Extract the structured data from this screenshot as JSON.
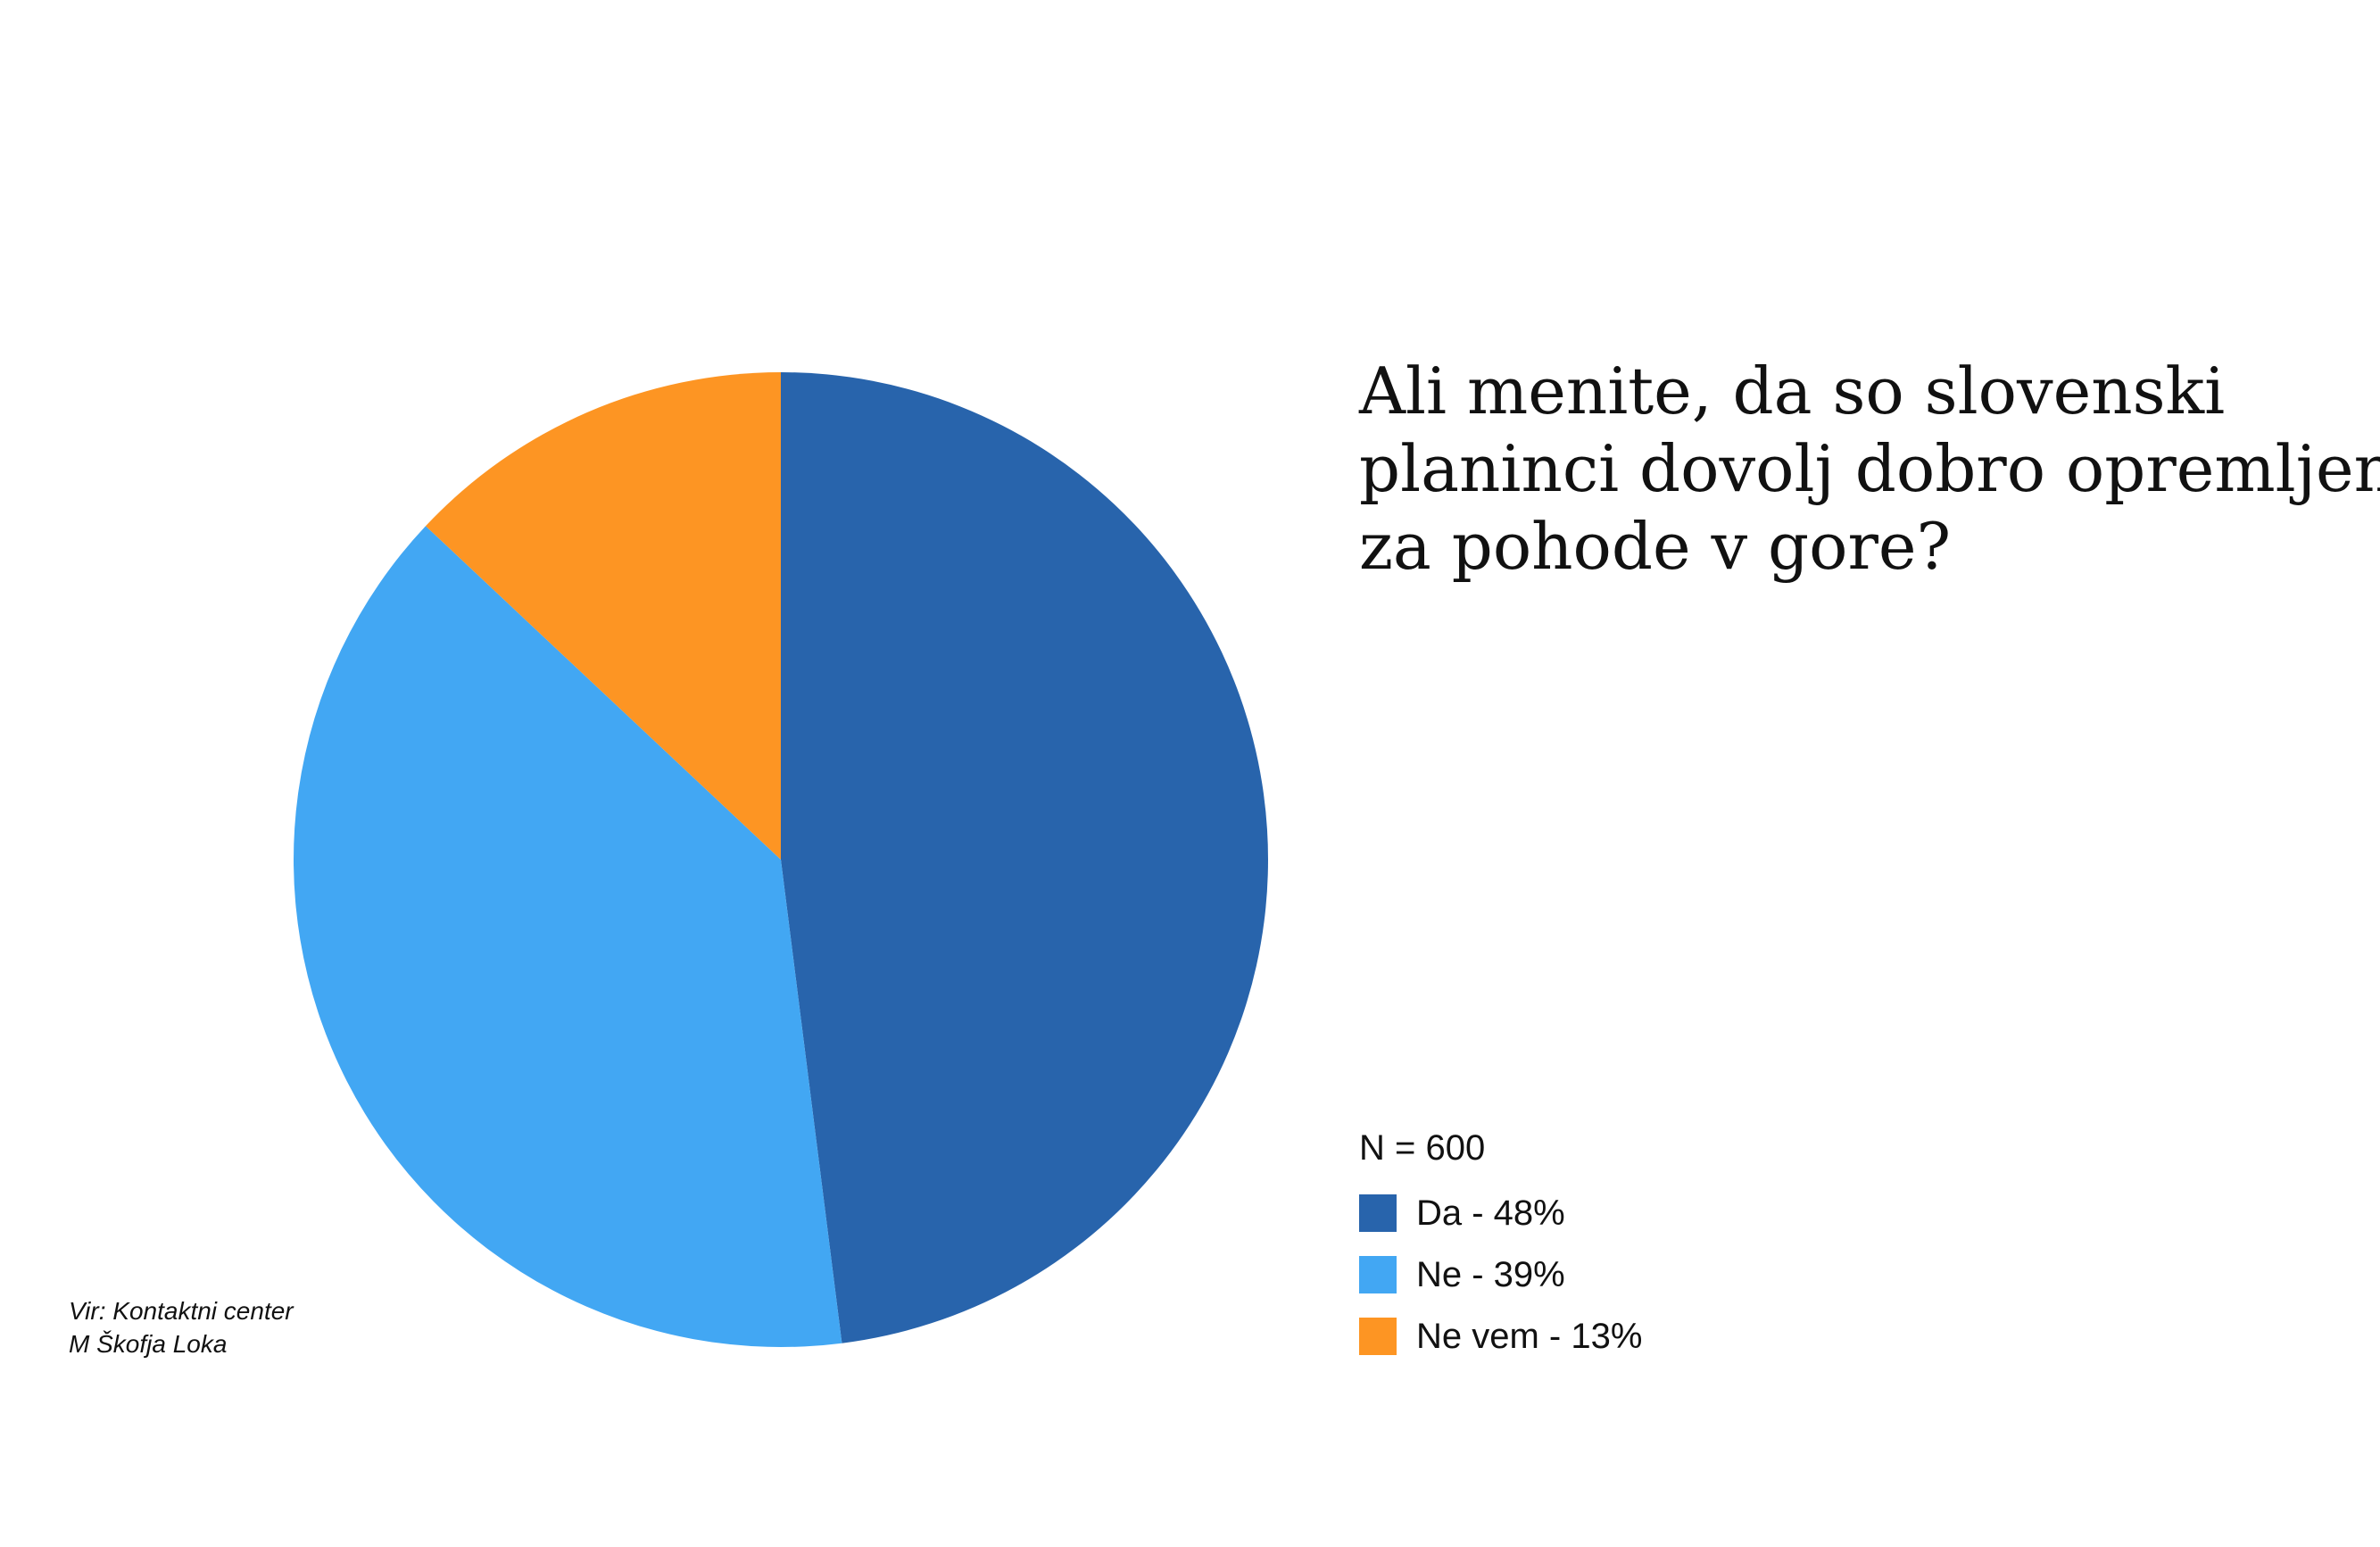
{
  "chart_data": {
    "type": "pie",
    "title_lines": [
      "Ali menite, da so slovenski",
      "planinci dovolj dobro opremljeni",
      "za pohode v gore?"
    ],
    "sample_size_label": "N = 600",
    "slices": [
      {
        "label": "Da - 48%",
        "value": 48,
        "color": "#2864ac"
      },
      {
        "label": "Ne - 39%",
        "value": 39,
        "color": "#42a7f3"
      },
      {
        "label": "Ne vem - 13%",
        "value": 13,
        "color": "#fd9523"
      }
    ],
    "start_angle_deg": 0,
    "direction": "clockwise",
    "legend_placement": "bottom-right"
  },
  "source": {
    "lines": [
      "Vir: Kontaktni center",
      "M Škofja Loka"
    ]
  }
}
